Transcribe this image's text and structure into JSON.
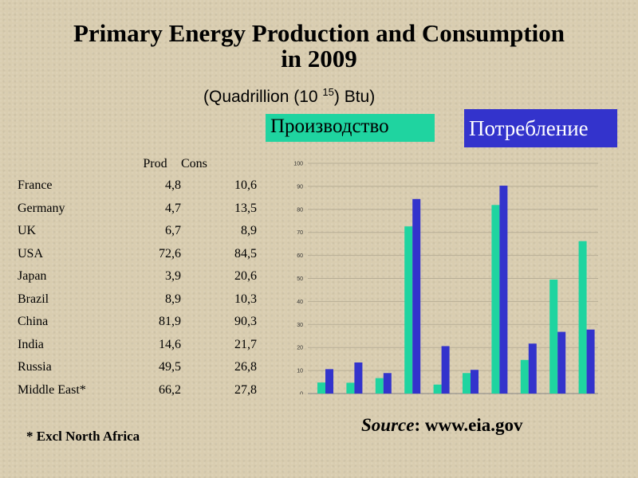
{
  "header": {
    "title_line1": "Primary Energy  Production and Consumption",
    "title_line2": "in 2009",
    "units_prefix": "(Quadrillion (10 ",
    "units_exp": "15",
    "units_suffix": ") Btu)"
  },
  "legend": {
    "production": "Производство",
    "consumption": "Потребление"
  },
  "colors": {
    "production": "#1fd4a0",
    "consumption": "#3333cc"
  },
  "table": {
    "headers": [
      "Prod",
      "Cons"
    ],
    "rows": [
      {
        "country": "France",
        "prod": "4,8",
        "cons": "10,6"
      },
      {
        "country": "Germany",
        "prod": "4,7",
        "cons": "13,5"
      },
      {
        "country": "UK",
        "prod": "6,7",
        "cons": "8,9"
      },
      {
        "country": "USA",
        "prod": "72,6",
        "cons": "84,5"
      },
      {
        "country": "Japan",
        "prod": "3,9",
        "cons": "20,6"
      },
      {
        "country": "Brazil",
        "prod": "8,9",
        "cons": "10,3"
      },
      {
        "country": "China",
        "prod": "81,9",
        "cons": "90,3"
      },
      {
        "country": "India",
        "prod": "14,6",
        "cons": "21,7"
      },
      {
        "country": "Russia",
        "prod": "49,5",
        "cons": "26,8"
      },
      {
        "country": "Middle East*",
        "prod": "66,2",
        "cons": "27,8"
      }
    ]
  },
  "footnote": "* Excl North Africa",
  "source": {
    "label": "Source",
    "text": ": www.eia.gov"
  },
  "chart_data": {
    "type": "bar",
    "title": "Primary Energy Production and Consumption in 2009",
    "xlabel": "",
    "ylabel": "",
    "categories": [
      "France",
      "Germany",
      "UK",
      "USA",
      "Japan",
      "Brazil",
      "China",
      "India",
      "Russia",
      "Middle East*"
    ],
    "series": [
      {
        "name": "Производство",
        "values": [
          4.8,
          4.7,
          6.7,
          72.6,
          3.9,
          8.9,
          81.9,
          14.6,
          49.5,
          66.2
        ]
      },
      {
        "name": "Потребление",
        "values": [
          10.6,
          13.5,
          8.9,
          84.5,
          20.6,
          10.3,
          90.3,
          21.7,
          26.8,
          27.8
        ]
      }
    ],
    "ylim": [
      0,
      100
    ],
    "yticks": [
      "0",
      "10",
      "20",
      "30",
      "40",
      "50",
      "60",
      "70",
      "80",
      "90",
      "100"
    ],
    "grid": true
  }
}
